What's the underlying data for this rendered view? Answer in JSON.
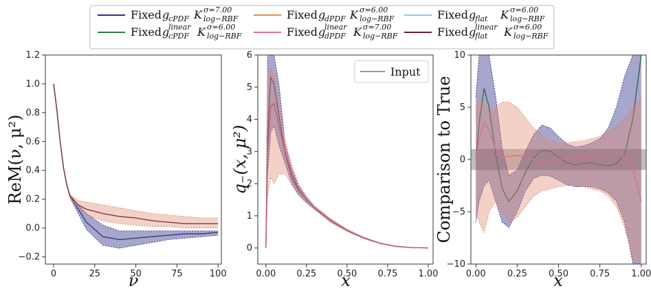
{
  "legend": {
    "items": [
      {
        "text": "Fixed",
        "g": "g",
        "gsub": "cPDF",
        "gsup": "",
        "k": "K",
        "ksup": "σ=7.00",
        "ksub": "log−RBF",
        "color": "#2e2a86"
      },
      {
        "text": "Fixed",
        "g": "g",
        "gsub": "dPDF",
        "gsup": "",
        "k": "K",
        "ksup": "σ=6.00",
        "ksub": "log−RBF",
        "color": "#f08a3c"
      },
      {
        "text": "Fixed",
        "g": "g",
        "gsub": "flat",
        "gsup": "",
        "k": "K",
        "ksup": "σ=6.00",
        "ksub": "log−RBF",
        "color": "#8ccbe8"
      },
      {
        "text": "Fixed",
        "g": "g",
        "gsub": "cPDF",
        "gsup": "linear",
        "k": "K",
        "ksup": "σ=6.00",
        "ksub": "log−RBF",
        "color": "#2f7a48"
      },
      {
        "text": "Fixed",
        "g": "g",
        "gsub": "dPDF",
        "gsup": "linear",
        "k": "K",
        "ksup": "σ=7.00",
        "ksub": "log−RBF",
        "color": "#d9708a"
      },
      {
        "text": "Fixed",
        "g": "g",
        "gsub": "flat",
        "gsup": "linear",
        "k": "K",
        "ksup": "σ=6.00",
        "ksub": "log−RBF",
        "color": "#6e1a3e"
      }
    ]
  },
  "chart_data": [
    {
      "type": "line",
      "xlabel": "ν",
      "ylabel": "ReM(ν, μ²)",
      "xlim": [
        -5,
        102
      ],
      "ylim": [
        -0.25,
        1.2
      ],
      "xticks": [
        "0",
        "25",
        "50",
        "75",
        "100"
      ],
      "yticks": [
        "−0.2",
        "0.0",
        "0.2",
        "0.4",
        "0.6",
        "0.8",
        "1.0",
        "1.2"
      ],
      "x": [
        0,
        2,
        4,
        6,
        8,
        10,
        15,
        20,
        30,
        40,
        50,
        60,
        70,
        80,
        90,
        100
      ],
      "series": [
        {
          "name": "cPDF",
          "values": [
            1.0,
            0.82,
            0.6,
            0.42,
            0.3,
            0.22,
            0.13,
            0.04,
            -0.06,
            -0.08,
            -0.07,
            -0.06,
            -0.05,
            -0.04,
            -0.04,
            -0.03
          ],
          "lower": [
            1.0,
            0.82,
            0.6,
            0.42,
            0.3,
            0.21,
            0.1,
            -0.01,
            -0.12,
            -0.14,
            -0.12,
            -0.1,
            -0.08,
            -0.07,
            -0.06,
            -0.05
          ],
          "upper": [
            1.0,
            0.82,
            0.6,
            0.42,
            0.3,
            0.23,
            0.16,
            0.1,
            0.02,
            -0.02,
            -0.02,
            -0.02,
            -0.02,
            -0.02,
            -0.02,
            -0.02
          ]
        },
        {
          "name": "dPDF",
          "values": [
            1.0,
            0.82,
            0.6,
            0.42,
            0.3,
            0.22,
            0.16,
            0.13,
            0.1,
            0.08,
            0.07,
            0.05,
            0.04,
            0.03,
            0.03,
            0.03
          ],
          "lower": [
            1.0,
            0.82,
            0.6,
            0.42,
            0.3,
            0.21,
            0.14,
            0.09,
            0.05,
            0.03,
            0.02,
            0.01,
            0.01,
            0.0,
            0.0,
            0.0
          ],
          "upper": [
            1.0,
            0.82,
            0.6,
            0.42,
            0.3,
            0.23,
            0.19,
            0.18,
            0.16,
            0.14,
            0.12,
            0.1,
            0.09,
            0.08,
            0.07,
            0.07
          ]
        }
      ]
    },
    {
      "type": "line",
      "xlabel": "x",
      "ylabel": "q₋(x, μ²)",
      "xlim": [
        -0.05,
        1.03
      ],
      "ylim": [
        -0.5,
        6
      ],
      "xticks": [
        "0.00",
        "0.25",
        "0.50",
        "0.75",
        "1.00"
      ],
      "yticks": [
        "0",
        "1",
        "2",
        "3",
        "4",
        "5",
        "6"
      ],
      "legend": "Input",
      "x": [
        0.0,
        0.01,
        0.03,
        0.05,
        0.08,
        0.12,
        0.16,
        0.2,
        0.25,
        0.3,
        0.4,
        0.5,
        0.6,
        0.7,
        0.8,
        0.9,
        1.0
      ],
      "series": [
        {
          "name": "Input",
          "values": [
            0.0,
            3.5,
            5.3,
            5.1,
            4.1,
            2.9,
            2.2,
            1.8,
            1.5,
            1.25,
            0.85,
            0.55,
            0.32,
            0.15,
            0.05,
            0.01,
            0.0
          ],
          "lower": [
            0.0,
            2.3,
            3.6,
            3.8,
            3.2,
            2.6,
            2.0,
            1.65,
            1.4,
            1.2,
            0.8,
            0.52,
            0.3,
            0.14,
            0.04,
            0.01,
            0.0
          ],
          "upper": [
            0.0,
            6.0,
            6.0,
            6.0,
            5.1,
            3.2,
            2.45,
            1.95,
            1.6,
            1.3,
            0.9,
            0.58,
            0.34,
            0.16,
            0.06,
            0.01,
            0.0
          ]
        },
        {
          "name": "dPDF",
          "values": [
            0.0,
            3.0,
            4.4,
            4.5,
            3.8,
            2.95,
            2.3,
            1.85,
            1.5,
            1.25,
            0.85,
            0.55,
            0.32,
            0.15,
            0.05,
            0.01,
            0.0
          ],
          "lower": [
            0.0,
            1.6,
            2.2,
            2.0,
            2.3,
            2.3,
            1.95,
            1.65,
            1.4,
            1.2,
            0.8,
            0.52,
            0.3,
            0.14,
            0.04,
            0.01,
            0.0
          ],
          "upper": [
            0.0,
            5.5,
            5.6,
            5.4,
            4.5,
            3.3,
            2.55,
            2.0,
            1.6,
            1.3,
            0.9,
            0.58,
            0.34,
            0.16,
            0.06,
            0.01,
            0.0
          ]
        }
      ]
    },
    {
      "type": "line",
      "xlabel": "x",
      "ylabel": "Comparison to True",
      "xlim": [
        -0.03,
        1.03
      ],
      "ylim": [
        -10,
        10
      ],
      "xticks": [
        "0.00",
        "0.25",
        "0.50",
        "0.75",
        "1.00"
      ],
      "yticks": [
        "−10",
        "−5",
        "0",
        "5",
        "10"
      ],
      "reference_band": [
        -1,
        1
      ],
      "x": [
        0.0,
        0.02,
        0.05,
        0.08,
        0.12,
        0.16,
        0.2,
        0.25,
        0.3,
        0.35,
        0.4,
        0.45,
        0.5,
        0.55,
        0.6,
        0.65,
        0.7,
        0.75,
        0.8,
        0.85,
        0.9,
        0.95,
        1.0
      ],
      "series": [
        {
          "name": "cPDF",
          "values": [
            0.0,
            3.5,
            6.8,
            5.0,
            0.5,
            -2.8,
            -4.0,
            -3.0,
            -1.2,
            0.2,
            0.9,
            0.8,
            0.2,
            -0.3,
            -0.5,
            -0.4,
            -0.3,
            -0.5,
            -0.6,
            -0.4,
            0.5,
            4.0,
            10.0
          ],
          "lower": [
            -6.0,
            -4.0,
            -2.5,
            -2.0,
            -4.0,
            -6.0,
            -6.5,
            -5.0,
            -3.0,
            -1.8,
            -1.5,
            -1.6,
            -2.0,
            -2.4,
            -2.6,
            -2.6,
            -2.6,
            -2.8,
            -3.2,
            -4.0,
            -6.0,
            -10.0,
            -10.0
          ],
          "upper": [
            6.0,
            10.0,
            10.0,
            10.0,
            6.0,
            1.0,
            -1.5,
            -1.0,
            0.8,
            2.4,
            3.3,
            3.0,
            2.2,
            1.5,
            1.2,
            1.3,
            1.6,
            2.0,
            3.0,
            5.0,
            8.0,
            10.0,
            10.0
          ]
        },
        {
          "name": "dPDF",
          "values": [
            0.0,
            2.0,
            3.5,
            2.8,
            1.0,
            0.2,
            0.3,
            0.4,
            0.2,
            0.0,
            -0.2,
            -0.2,
            0.0,
            0.2,
            0.3,
            0.3,
            0.3,
            0.3,
            0.4,
            0.6,
            0.3,
            -1.0,
            -4.0
          ],
          "lower": [
            -5.0,
            -6.0,
            -7.0,
            -5.0,
            -4.0,
            -5.0,
            -6.0,
            -5.5,
            -4.5,
            -3.5,
            -3.0,
            -2.8,
            -2.6,
            -2.5,
            -2.5,
            -2.6,
            -2.8,
            -3.0,
            -3.5,
            -4.5,
            -6.5,
            -9.5,
            -10.0
          ],
          "upper": [
            5.0,
            6.0,
            5.5,
            4.5,
            5.0,
            5.5,
            5.5,
            5.0,
            4.0,
            3.0,
            2.3,
            1.8,
            1.6,
            1.6,
            1.7,
            1.8,
            2.0,
            2.2,
            2.6,
            3.2,
            4.0,
            5.0,
            6.0
          ]
        }
      ]
    }
  ]
}
